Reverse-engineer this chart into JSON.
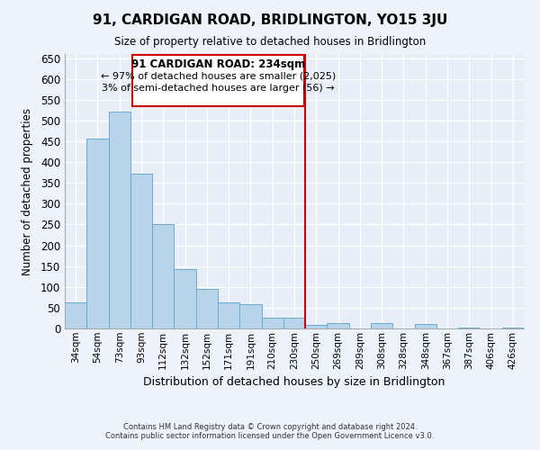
{
  "title": "91, CARDIGAN ROAD, BRIDLINGTON, YO15 3JU",
  "subtitle": "Size of property relative to detached houses in Bridlington",
  "xlabel": "Distribution of detached houses by size in Bridlington",
  "ylabel": "Number of detached properties",
  "bar_labels": [
    "34sqm",
    "54sqm",
    "73sqm",
    "93sqm",
    "112sqm",
    "132sqm",
    "152sqm",
    "171sqm",
    "191sqm",
    "210sqm",
    "230sqm",
    "250sqm",
    "269sqm",
    "289sqm",
    "308sqm",
    "328sqm",
    "348sqm",
    "367sqm",
    "387sqm",
    "406sqm",
    "426sqm"
  ],
  "bar_values": [
    62,
    456,
    521,
    372,
    250,
    142,
    95,
    62,
    58,
    27,
    27,
    9,
    13,
    0,
    12,
    0,
    10,
    0,
    3,
    0,
    2
  ],
  "bar_color": "#b8d4ea",
  "bar_edge_color": "#6aaad4",
  "vline_x": 10.5,
  "vline_color": "#cc0000",
  "ylim": [
    0,
    660
  ],
  "yticks": [
    0,
    50,
    100,
    150,
    200,
    250,
    300,
    350,
    400,
    450,
    500,
    550,
    600,
    650
  ],
  "annotation_title": "91 CARDIGAN ROAD: 234sqm",
  "annotation_line1": "← 97% of detached houses are smaller (2,025)",
  "annotation_line2": "3% of semi-detached houses are larger (56) →",
  "annotation_box_color": "#ffffff",
  "annotation_box_edge": "#cc0000",
  "footer_line1": "Contains HM Land Registry data © Crown copyright and database right 2024.",
  "footer_line2": "Contains public sector information licensed under the Open Government Licence v3.0.",
  "bg_color": "#eef2fb",
  "plot_bg_color": "#e8eef8",
  "grid_color": "#ffffff",
  "spine_color": "#aaaaaa"
}
